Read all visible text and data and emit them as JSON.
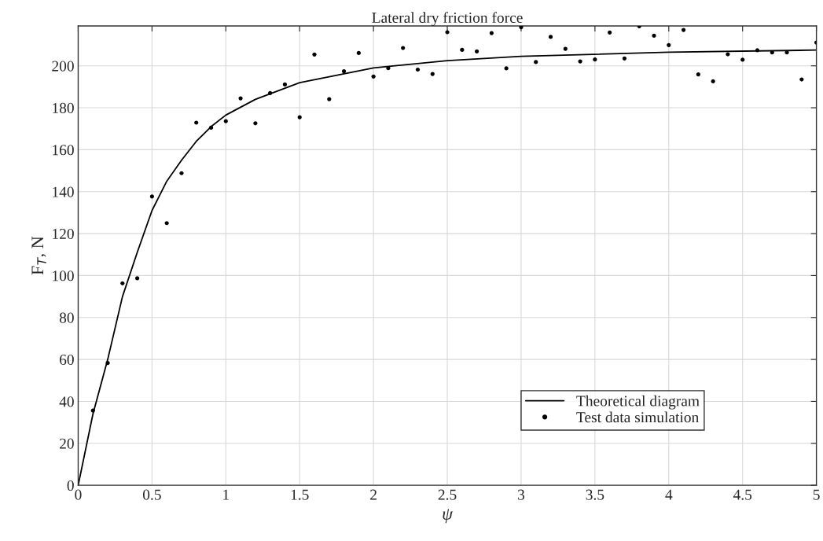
{
  "chart_data": {
    "type": "scatter",
    "title": "Lateral dry friction force",
    "xlabel": "ψ",
    "ylabel": "F$_{T}$, N",
    "xlim": [
      0,
      5
    ],
    "ylim": [
      0,
      219
    ],
    "xticks": [
      0,
      0.5,
      1,
      1.5,
      2,
      2.5,
      3,
      3.5,
      4,
      4.5,
      5
    ],
    "yticks": [
      0,
      20,
      40,
      60,
      80,
      100,
      120,
      140,
      160,
      180,
      200
    ],
    "grid": true,
    "legend": "bottom right",
    "series": [
      {
        "name": "Theoretical diagram",
        "type": "line",
        "marker": "none",
        "line_style": "solid",
        "color": "#000000",
        "x": [
          0,
          0.1,
          0.2,
          0.3,
          0.4,
          0.5,
          0.6,
          0.7,
          0.8,
          0.9,
          1,
          1.2,
          1.5,
          2,
          2.5,
          3,
          4,
          5
        ],
        "values": [
          0,
          34,
          60,
          90,
          111,
          131,
          145,
          155,
          164,
          171,
          176.5,
          184,
          192,
          199,
          202.5,
          204.5,
          206.5,
          207.5
        ]
      },
      {
        "name": "Test data simulation",
        "marker": "circle",
        "color": "#000000",
        "x": [
          0.1,
          0.2,
          0.3,
          0.4,
          0.5,
          0.6,
          0.7,
          0.8,
          0.9,
          1,
          1.1,
          1.2,
          1.3,
          1.4,
          1.5,
          1.6,
          1.7,
          1.8,
          1.9,
          2,
          2.1,
          2.2,
          2.3,
          2.4,
          2.5,
          2.6,
          2.7,
          2.8,
          2.9,
          3,
          3.1,
          3.2,
          3.3,
          3.4,
          3.5,
          3.6,
          3.7,
          3.8,
          3.9,
          4,
          4.1,
          4.2,
          4.3,
          4.4,
          4.5,
          4.6,
          4.7,
          4.8,
          4.9,
          5
        ],
        "values": [
          35.6,
          58.3,
          96.3,
          98.7,
          137.7,
          125,
          148.8,
          172.9,
          170.5,
          173.6,
          184.5,
          172.6,
          187,
          191.1,
          175.5,
          205.4,
          184.1,
          197.4,
          206.1,
          194.9,
          198.9,
          208.5,
          198.2,
          196.1,
          216,
          207.6,
          206.9,
          215.6,
          198.8,
          218.4,
          201.8,
          213.8,
          208.1,
          202.1,
          203,
          215.9,
          203.5,
          218.9,
          214.4,
          209.9,
          217.1,
          195.9,
          192.6,
          205.5,
          202.9,
          207.4,
          206.4,
          206.4,
          193.5,
          211.1
        ]
      }
    ]
  }
}
